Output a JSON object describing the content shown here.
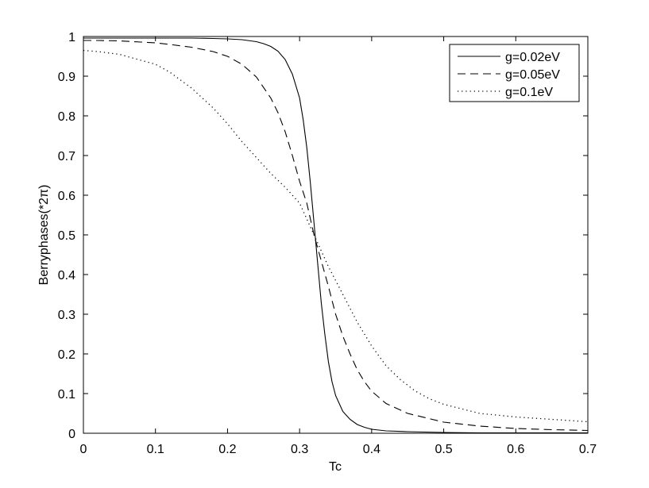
{
  "chart_data": {
    "type": "line",
    "title": "",
    "xlabel": "Tc",
    "ylabel": "Berryphases(*2π)",
    "xlim": [
      0,
      0.7
    ],
    "ylim": [
      0,
      1
    ],
    "xticks": [
      "0",
      "0.1",
      "0.2",
      "0.3",
      "0.4",
      "0.5",
      "0.6",
      "0.7"
    ],
    "yticks": [
      "0",
      "0.1",
      "0.2",
      "0.3",
      "0.4",
      "0.5",
      "0.6",
      "0.7",
      "0.8",
      "0.9",
      "1"
    ],
    "grid": false,
    "legend_position": "top-right",
    "series": [
      {
        "name": "g=0.02eV",
        "style": "solid",
        "x": [
          0.0,
          0.02,
          0.05,
          0.08,
          0.1,
          0.12,
          0.15,
          0.18,
          0.2,
          0.22,
          0.24,
          0.25,
          0.26,
          0.27,
          0.28,
          0.29,
          0.3,
          0.305,
          0.31,
          0.315,
          0.32,
          0.325,
          0.33,
          0.335,
          0.34,
          0.345,
          0.35,
          0.36,
          0.37,
          0.38,
          0.39,
          0.4,
          0.42,
          0.45,
          0.5,
          0.55,
          0.6,
          0.65,
          0.7
        ],
        "y": [
          0.996,
          0.996,
          0.996,
          0.996,
          0.996,
          0.996,
          0.996,
          0.995,
          0.994,
          0.992,
          0.987,
          0.982,
          0.975,
          0.963,
          0.942,
          0.905,
          0.845,
          0.79,
          0.72,
          0.63,
          0.53,
          0.43,
          0.33,
          0.25,
          0.18,
          0.13,
          0.095,
          0.055,
          0.035,
          0.022,
          0.015,
          0.01,
          0.006,
          0.004,
          0.002,
          0.001,
          0.001,
          0.001,
          0.001
        ]
      },
      {
        "name": "g=0.05eV",
        "style": "dashed",
        "x": [
          0.0,
          0.02,
          0.05,
          0.08,
          0.1,
          0.12,
          0.15,
          0.18,
          0.2,
          0.22,
          0.24,
          0.26,
          0.27,
          0.28,
          0.29,
          0.3,
          0.31,
          0.32,
          0.33,
          0.34,
          0.35,
          0.36,
          0.37,
          0.38,
          0.39,
          0.4,
          0.42,
          0.45,
          0.5,
          0.55,
          0.6,
          0.65,
          0.7
        ],
        "y": [
          0.99,
          0.99,
          0.989,
          0.986,
          0.984,
          0.98,
          0.973,
          0.962,
          0.95,
          0.93,
          0.898,
          0.845,
          0.808,
          0.76,
          0.7,
          0.635,
          0.58,
          0.5,
          0.435,
          0.37,
          0.3,
          0.245,
          0.2,
          0.16,
          0.13,
          0.106,
          0.075,
          0.05,
          0.028,
          0.018,
          0.012,
          0.009,
          0.007
        ]
      },
      {
        "name": "g=0.1eV",
        "style": "dotted",
        "x": [
          0.0,
          0.02,
          0.05,
          0.08,
          0.1,
          0.12,
          0.15,
          0.18,
          0.2,
          0.22,
          0.24,
          0.26,
          0.28,
          0.3,
          0.32,
          0.34,
          0.36,
          0.38,
          0.4,
          0.42,
          0.44,
          0.46,
          0.48,
          0.5,
          0.55,
          0.6,
          0.65,
          0.7
        ],
        "y": [
          0.965,
          0.962,
          0.955,
          0.94,
          0.93,
          0.91,
          0.87,
          0.82,
          0.78,
          0.735,
          0.695,
          0.655,
          0.62,
          0.58,
          0.5,
          0.42,
          0.35,
          0.28,
          0.22,
          0.17,
          0.135,
          0.107,
          0.087,
          0.073,
          0.05,
          0.041,
          0.035,
          0.029
        ]
      }
    ]
  }
}
